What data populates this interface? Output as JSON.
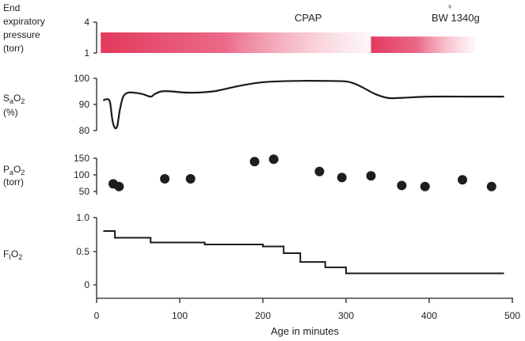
{
  "chart_data": {
    "type": "multi-panel time series",
    "x_axis": {
      "label": "Age in minutes",
      "range": [
        0,
        500
      ],
      "ticks": [
        0,
        100,
        200,
        300,
        400,
        500
      ]
    },
    "annotations": {
      "mode": "CPAP",
      "patient": "BW 1340g",
      "sex_symbol": "♀"
    },
    "panels": [
      {
        "id": "eep",
        "type": "bar",
        "label_lines": [
          "End",
          "expiratory",
          "pressure",
          "(torr)"
        ],
        "y_ticks": [
          4,
          1
        ],
        "y_range": [
          1,
          4
        ],
        "color": "#e23a5c",
        "segments": [
          {
            "x_start": 5,
            "x_end": 330,
            "value": 3.0
          },
          {
            "x_start": 330,
            "x_end": 455,
            "value": 2.6
          }
        ]
      },
      {
        "id": "sao2",
        "type": "line",
        "label": "SaO2",
        "label_main": "S",
        "label_sub": "a",
        "label_after": "O",
        "label_sub2": "2",
        "label_unit": "(%)",
        "y_ticks": [
          100,
          90,
          80
        ],
        "y_range": [
          78,
          100
        ],
        "x": [
          8,
          12,
          16,
          19,
          22,
          25,
          28,
          32,
          38,
          45,
          55,
          65,
          70,
          78,
          90,
          110,
          140,
          170,
          200,
          240,
          280,
          300,
          310,
          320,
          335,
          350,
          365,
          400,
          450,
          490
        ],
        "y": [
          91.5,
          92,
          91,
          84,
          81,
          82,
          88,
          93,
          94.5,
          94.5,
          94,
          93,
          94,
          95,
          95,
          94.5,
          95,
          97,
          98.5,
          99,
          99,
          98.8,
          98,
          96.5,
          94,
          92.5,
          92.5,
          93,
          93,
          93
        ]
      },
      {
        "id": "pao2",
        "type": "scatter",
        "label": "PaO2",
        "label_main": "P",
        "label_sub": "a",
        "label_after": "O",
        "label_sub2": "2",
        "label_unit": "(torr)",
        "y_ticks": [
          150,
          100,
          50
        ],
        "y_range": [
          20,
          160
        ],
        "x": [
          20,
          27,
          82,
          113,
          190,
          213,
          268,
          295,
          330,
          367,
          395,
          440,
          475
        ],
        "y": [
          73,
          65,
          88,
          88,
          140,
          147,
          110,
          92,
          97,
          68,
          65,
          85,
          65
        ]
      },
      {
        "id": "fio2",
        "type": "step",
        "label": "FiO2",
        "label_main": "F",
        "label_sub": "I",
        "label_after": "O",
        "label_sub2": "2",
        "y_ticks": [
          "1.0",
          "0.5",
          "0"
        ],
        "y_range": [
          0,
          1.0
        ],
        "x": [
          8,
          22,
          65,
          130,
          200,
          225,
          245,
          275,
          300,
          490
        ],
        "y": [
          0.8,
          0.7,
          0.63,
          0.6,
          0.57,
          0.47,
          0.34,
          0.26,
          0.17,
          0.17
        ]
      }
    ]
  }
}
